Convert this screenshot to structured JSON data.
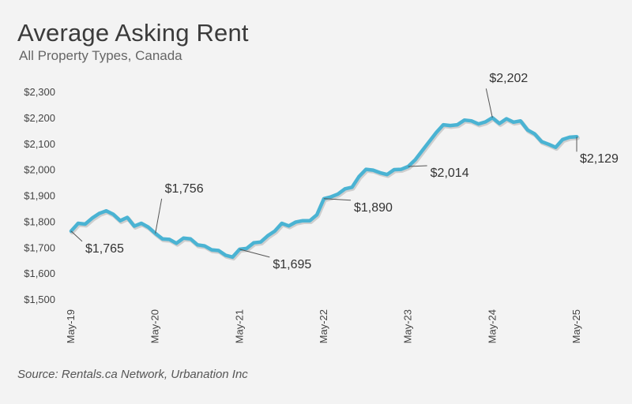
{
  "title": "Average Asking Rent",
  "subtitle": "All Property Types, Canada",
  "source": "Source: Rentals.ca Network, Urbanation Inc",
  "colors": {
    "line": "#4ab3d3",
    "line_shadow": "#8a8a8a",
    "background": "#f3f3f3"
  },
  "chart_data": {
    "type": "line",
    "title": "Average Asking Rent",
    "subtitle": "All Property Types, Canada",
    "xlabel": "",
    "ylabel": "",
    "ylim": [
      1500,
      2300
    ],
    "yticks": [
      1500,
      1600,
      1700,
      1800,
      1900,
      2000,
      2100,
      2200,
      2300
    ],
    "ytick_labels": [
      "$1,500",
      "$1,600",
      "$1,700",
      "$1,800",
      "$1,900",
      "$2,000",
      "$2,100",
      "$2,200",
      "$2,300"
    ],
    "xticks": [
      "May-19",
      "May-20",
      "May-21",
      "May-22",
      "May-23",
      "May-24",
      "May-25"
    ],
    "grid": false,
    "series": [
      {
        "x_start": "May-19",
        "frequency": "monthly",
        "values": [
          1765,
          1795,
          1792,
          1815,
          1833,
          1843,
          1830,
          1805,
          1818,
          1784,
          1795,
          1780,
          1756,
          1735,
          1733,
          1718,
          1738,
          1735,
          1712,
          1708,
          1693,
          1690,
          1672,
          1665,
          1695,
          1698,
          1720,
          1723,
          1747,
          1765,
          1795,
          1785,
          1800,
          1805,
          1805,
          1828,
          1890,
          1897,
          1908,
          1928,
          1934,
          1975,
          2003,
          2000,
          1990,
          1983,
          2002,
          2003,
          2014,
          2040,
          2075,
          2110,
          2145,
          2175,
          2172,
          2175,
          2193,
          2190,
          2178,
          2186,
          2202,
          2180,
          2198,
          2185,
          2190,
          2155,
          2140,
          2110,
          2100,
          2088,
          2118,
          2127,
          2129
        ]
      }
    ],
    "annotations": [
      {
        "label": "$1,765",
        "x": "May-19",
        "y": 1765
      },
      {
        "label": "$1,756",
        "x": "May-20",
        "y": 1756
      },
      {
        "label": "$1,695",
        "x": "May-21",
        "y": 1695
      },
      {
        "label": "$1,890",
        "x": "May-22",
        "y": 1890
      },
      {
        "label": "$2,014",
        "x": "May-23",
        "y": 2014
      },
      {
        "label": "$2,202",
        "x": "May-24",
        "y": 2202
      },
      {
        "label": "$2,129",
        "x": "May-25",
        "y": 2129
      }
    ]
  }
}
